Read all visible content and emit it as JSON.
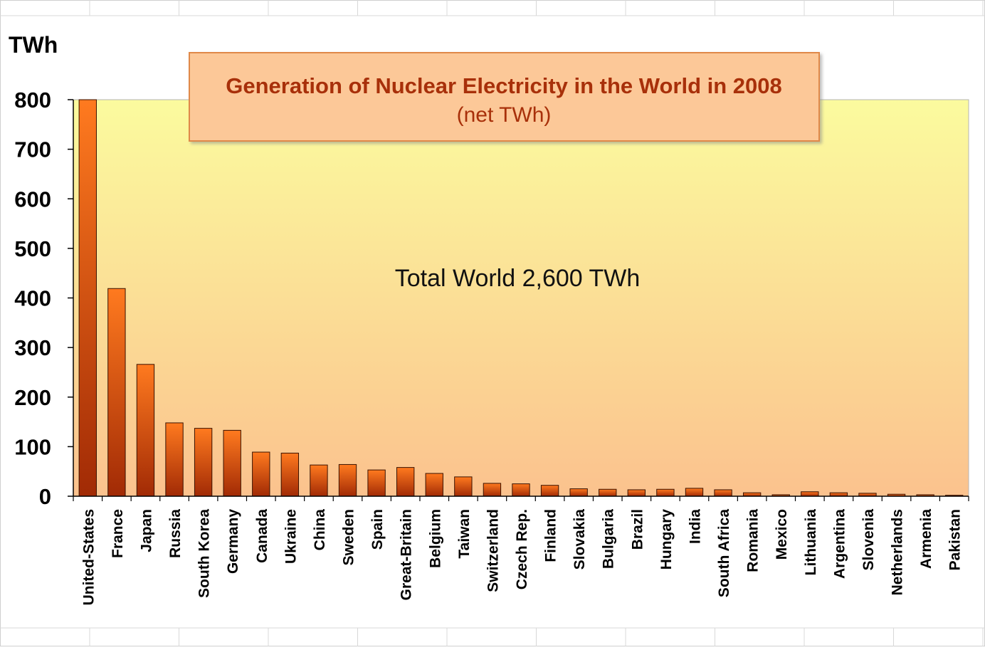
{
  "chart_data": {
    "type": "bar",
    "title": "Generation of Nuclear Electricity in the World in 2008",
    "subtitle": "(net TWh)",
    "ylabel": "TWh",
    "annotation": "Total World 2,600 TWh",
    "ylim": [
      0,
      800
    ],
    "yticks": [
      "0",
      "100",
      "200",
      "300",
      "400",
      "500",
      "600",
      "700",
      "800"
    ],
    "categories": [
      "United-States",
      "France",
      "Japan",
      "Russia",
      "South Korea",
      "Germany",
      "Canada",
      "Ukraine",
      "China",
      "Sweden",
      "Spain",
      "Great-Britain",
      "Belgium",
      "Taiwan",
      "Switzerland",
      "Czech Rep.",
      "Finland",
      "Slovakia",
      "Bulgaria",
      "Brazil",
      "Hungary",
      "India",
      "South  Africa",
      "Romania",
      "Mexico",
      "Lithuania",
      "Argentina",
      "Slovenia",
      "Netherlands",
      "Armenia",
      "Pakistan"
    ],
    "values": [
      800,
      419,
      266,
      148,
      137,
      133,
      89,
      87,
      63,
      64,
      53,
      58,
      46,
      39,
      26,
      25,
      22,
      15,
      14,
      13,
      14,
      16,
      13,
      7,
      3,
      9,
      7,
      6,
      4,
      3,
      2
    ],
    "grid": false,
    "colors": {
      "bar_light": "#ff7a1f",
      "bar_dark": "#a12a05",
      "plot_top": "#fbfb9e",
      "plot_bottom": "#fbc28e",
      "title_box": "#fcc898",
      "title_border": "#e0894a",
      "title_text": "#a8300a",
      "subtitle_text": "#a8300a"
    }
  }
}
